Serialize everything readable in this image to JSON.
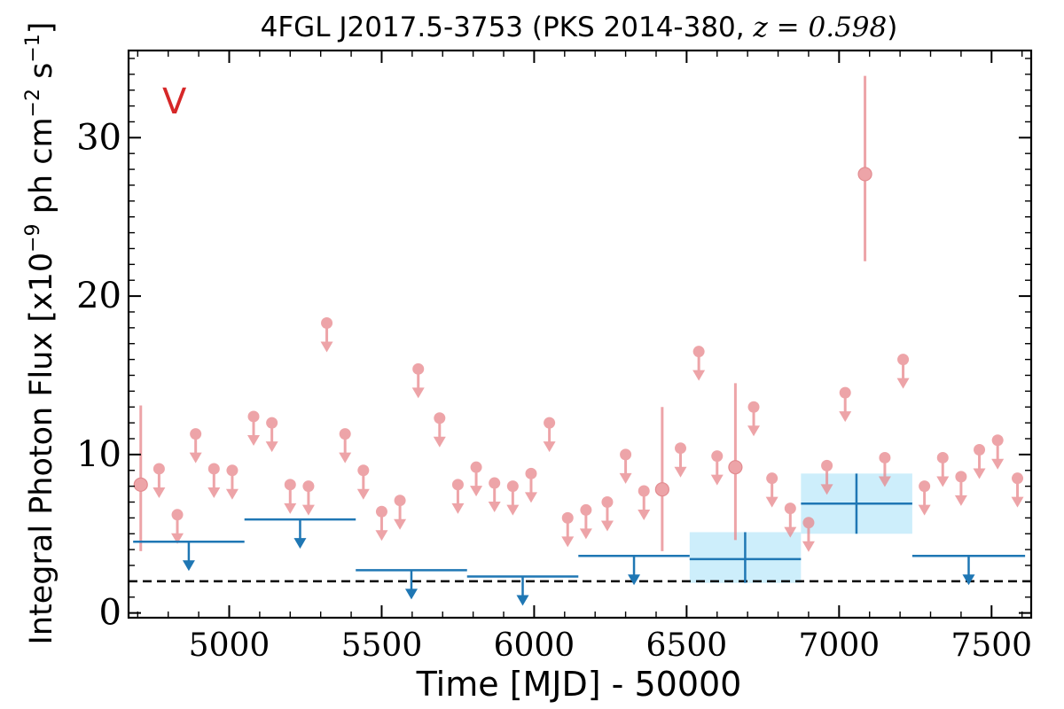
{
  "chart_data": {
    "type": "scatter",
    "title": "4FGL J2017.5-3753 (PKS 2014-380, ",
    "title_math": "z = 0.598",
    "title_close": ")",
    "xlabel": "Time [MJD] - 50000",
    "ylabel": "Integral Photon Flux [x10",
    "ylabel_exp": "−9",
    "ylabel_units": " ph cm",
    "ylabel_exp2": "−2",
    "ylabel_units2": " s",
    "ylabel_exp3": "−1",
    "ylabel_close": "]",
    "panel_label": "V",
    "xlim": [
      4670,
      7630
    ],
    "ylim": [
      -0.3,
      35.5
    ],
    "xticks": [
      5000,
      5500,
      6000,
      6500,
      7000,
      7500
    ],
    "yticks": [
      0,
      10,
      20,
      30
    ],
    "colors": {
      "short_bins": "#e8868b",
      "long_bins": "#1f77b4",
      "shade": "#cdeefb",
      "panel_label": "#d62728",
      "reference": "#000000"
    },
    "reference_level": 2.0,
    "short_bin_detections": [
      {
        "x": 4710,
        "y": 8.1,
        "ylo": 3.9,
        "yhi": 13.1
      },
      {
        "x": 6420,
        "y": 7.8,
        "ylo": 3.9,
        "yhi": 13.0
      },
      {
        "x": 6660,
        "y": 9.2,
        "ylo": 4.6,
        "yhi": 14.5
      },
      {
        "x": 7085,
        "y": 27.7,
        "ylo": 22.2,
        "yhi": 33.9
      }
    ],
    "short_bin_upper_limits": [
      {
        "x": 4770,
        "y": 9.1
      },
      {
        "x": 4830,
        "y": 6.2
      },
      {
        "x": 4890,
        "y": 11.3
      },
      {
        "x": 4950,
        "y": 9.1
      },
      {
        "x": 5010,
        "y": 9.0
      },
      {
        "x": 5080,
        "y": 12.4
      },
      {
        "x": 5140,
        "y": 12.0
      },
      {
        "x": 5200,
        "y": 8.1
      },
      {
        "x": 5260,
        "y": 8.0
      },
      {
        "x": 5320,
        "y": 18.3
      },
      {
        "x": 5380,
        "y": 11.3
      },
      {
        "x": 5440,
        "y": 9.0
      },
      {
        "x": 5500,
        "y": 6.4
      },
      {
        "x": 5560,
        "y": 7.1
      },
      {
        "x": 5620,
        "y": 15.4
      },
      {
        "x": 5690,
        "y": 12.3
      },
      {
        "x": 5750,
        "y": 8.1
      },
      {
        "x": 5810,
        "y": 9.2
      },
      {
        "x": 5870,
        "y": 8.2
      },
      {
        "x": 5930,
        "y": 8.0
      },
      {
        "x": 5990,
        "y": 8.8
      },
      {
        "x": 6050,
        "y": 12.0
      },
      {
        "x": 6110,
        "y": 6.0
      },
      {
        "x": 6170,
        "y": 6.5
      },
      {
        "x": 6240,
        "y": 7.0
      },
      {
        "x": 6300,
        "y": 10.0
      },
      {
        "x": 6360,
        "y": 7.7
      },
      {
        "x": 6480,
        "y": 10.4
      },
      {
        "x": 6540,
        "y": 16.5
      },
      {
        "x": 6600,
        "y": 9.9
      },
      {
        "x": 6720,
        "y": 13.0
      },
      {
        "x": 6780,
        "y": 8.5
      },
      {
        "x": 6840,
        "y": 6.6
      },
      {
        "x": 6900,
        "y": 5.7
      },
      {
        "x": 6960,
        "y": 9.3
      },
      {
        "x": 7020,
        "y": 13.9
      },
      {
        "x": 7150,
        "y": 9.8
      },
      {
        "x": 7210,
        "y": 16.0
      },
      {
        "x": 7280,
        "y": 8.0
      },
      {
        "x": 7340,
        "y": 9.8
      },
      {
        "x": 7400,
        "y": 8.6
      },
      {
        "x": 7460,
        "y": 10.3
      },
      {
        "x": 7520,
        "y": 10.9
      },
      {
        "x": 7585,
        "y": 8.5
      }
    ],
    "long_bin_upper_limits": [
      {
        "x0": 4685,
        "x1": 5050,
        "y": 4.5
      },
      {
        "x0": 5050,
        "x1": 5415,
        "y": 5.9
      },
      {
        "x0": 5415,
        "x1": 5780,
        "y": 2.7
      },
      {
        "x0": 5780,
        "x1": 6145,
        "y": 2.3
      },
      {
        "x0": 6145,
        "x1": 6510,
        "y": 3.6
      },
      {
        "x0": 7240,
        "x1": 7610,
        "y": 3.6
      }
    ],
    "long_bin_detections": [
      {
        "x0": 6510,
        "x1": 6875,
        "x": 6692,
        "y": 3.4,
        "ylo": 1.9,
        "yhi": 5.1
      },
      {
        "x0": 6875,
        "x1": 7240,
        "x": 7057,
        "y": 6.9,
        "ylo": 5.0,
        "yhi": 8.8
      }
    ]
  }
}
